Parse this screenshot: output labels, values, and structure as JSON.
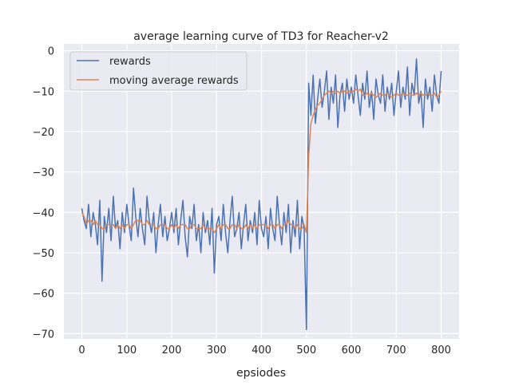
{
  "chart_data": {
    "type": "line",
    "title": "average learning curve of TD3 for Reacher-v2",
    "xlabel": "epsiodes",
    "ylabel": "",
    "xlim": [
      -40,
      840
    ],
    "ylim": [
      -71.3,
      1.7
    ],
    "xticks": [
      0,
      100,
      200,
      300,
      400,
      500,
      600,
      700,
      800
    ],
    "yticks": [
      0,
      -10,
      -20,
      -30,
      -40,
      -50,
      -60,
      -70
    ],
    "xtick_labels": [
      "0",
      "100",
      "200",
      "300",
      "400",
      "500",
      "600",
      "700",
      "800"
    ],
    "ytick_labels": [
      "0",
      "−10",
      "−20",
      "−30",
      "−40",
      "−50",
      "−60",
      "−70"
    ],
    "grid": true,
    "background": "#eaeaf2",
    "legend_placement": "top-left",
    "x_step": 5,
    "series": [
      {
        "name": "rewards",
        "color": "#4c72b0",
        "values": [
          -39,
          -42,
          -44,
          -38,
          -46,
          -40,
          -43,
          -48,
          -37,
          -57,
          -41,
          -45,
          -39,
          -47,
          -36,
          -44,
          -42,
          -49,
          -40,
          -45,
          -38,
          -43,
          -47,
          -34,
          -41,
          -46,
          -39,
          -44,
          -48,
          -36,
          -42,
          -45,
          -40,
          -50,
          -43,
          -38,
          -46,
          -41,
          -47,
          -44,
          -40,
          -45,
          -39,
          -48,
          -42,
          -37,
          -46,
          -51,
          -41,
          -44,
          -38,
          -47,
          -43,
          -50,
          -40,
          -45,
          -42,
          -48,
          -39,
          -55,
          -43,
          -41,
          -47,
          -38,
          -45,
          -50,
          -42,
          -36,
          -46,
          -44,
          -40,
          -49,
          -43,
          -38,
          -47,
          -42,
          -45,
          -40,
          -48,
          -37,
          -44,
          -46,
          -41,
          -49,
          -39,
          -44,
          -47,
          -36,
          -43,
          -48,
          -40,
          -45,
          -38,
          -50,
          -42,
          -46,
          -37,
          -49,
          -41,
          -44,
          -69,
          -8,
          -16,
          -6,
          -18,
          -12,
          -7,
          -14,
          -10,
          -5,
          -17,
          -9,
          -13,
          -6,
          -19,
          -11,
          -8,
          -15,
          -7,
          -12,
          -9,
          -13,
          -6,
          -11,
          -16,
          -8,
          -12,
          -5,
          -14,
          -10,
          -17,
          -7,
          -11,
          -13,
          -6,
          -15,
          -9,
          -12,
          -8,
          -16,
          -10,
          -5,
          -14,
          -9,
          -12,
          -4,
          -16,
          -8,
          -11,
          -2,
          -13,
          -10,
          -19,
          -7,
          -12,
          -9,
          -15,
          -6,
          -11,
          -13,
          -5
        ]
      },
      {
        "name": "moving average rewards",
        "color": "#dd8452",
        "values": [
          -40,
          -41,
          -43,
          -42,
          -42,
          -43,
          -42,
          -43,
          -43,
          -44,
          -44,
          -43,
          -43,
          -43,
          -43,
          -44,
          -43,
          -44,
          -43,
          -44,
          -43,
          -43,
          -44,
          -43,
          -42,
          -42,
          -42,
          -43,
          -43,
          -42,
          -43,
          -43,
          -43,
          -44,
          -44,
          -43,
          -43,
          -43,
          -44,
          -44,
          -43,
          -44,
          -43,
          -44,
          -43,
          -43,
          -43,
          -44,
          -44,
          -43,
          -43,
          -44,
          -44,
          -44,
          -43,
          -44,
          -44,
          -44,
          -44,
          -45,
          -44,
          -43,
          -44,
          -43,
          -43,
          -44,
          -44,
          -43,
          -43,
          -44,
          -43,
          -44,
          -44,
          -43,
          -44,
          -43,
          -44,
          -43,
          -44,
          -43,
          -43,
          -43,
          -43,
          -44,
          -43,
          -43,
          -44,
          -43,
          -43,
          -44,
          -43,
          -43,
          -42,
          -43,
          -43,
          -44,
          -43,
          -44,
          -44,
          -43,
          -45,
          -26,
          -18,
          -16,
          -14.5,
          -13.5,
          -13,
          -12,
          -11,
          -10.5,
          -10,
          -10.5,
          -10,
          -10.5,
          -10,
          -10.5,
          -10,
          -10,
          -10.5,
          -10,
          -10,
          -10,
          -9.5,
          -10,
          -9.5,
          -11,
          -11,
          -10.5,
          -11,
          -10.5,
          -11,
          -11.5,
          -11,
          -10.5,
          -11,
          -11,
          -10.5,
          -11,
          -11.5,
          -11,
          -10.5,
          -11,
          -11,
          -10.5,
          -11,
          -11,
          -10.5,
          -11,
          -11,
          -10.5,
          -11,
          -10.5,
          -11,
          -11,
          -10.5,
          -11,
          -11,
          -10.5,
          -11.5,
          -11,
          -10
        ]
      }
    ]
  }
}
